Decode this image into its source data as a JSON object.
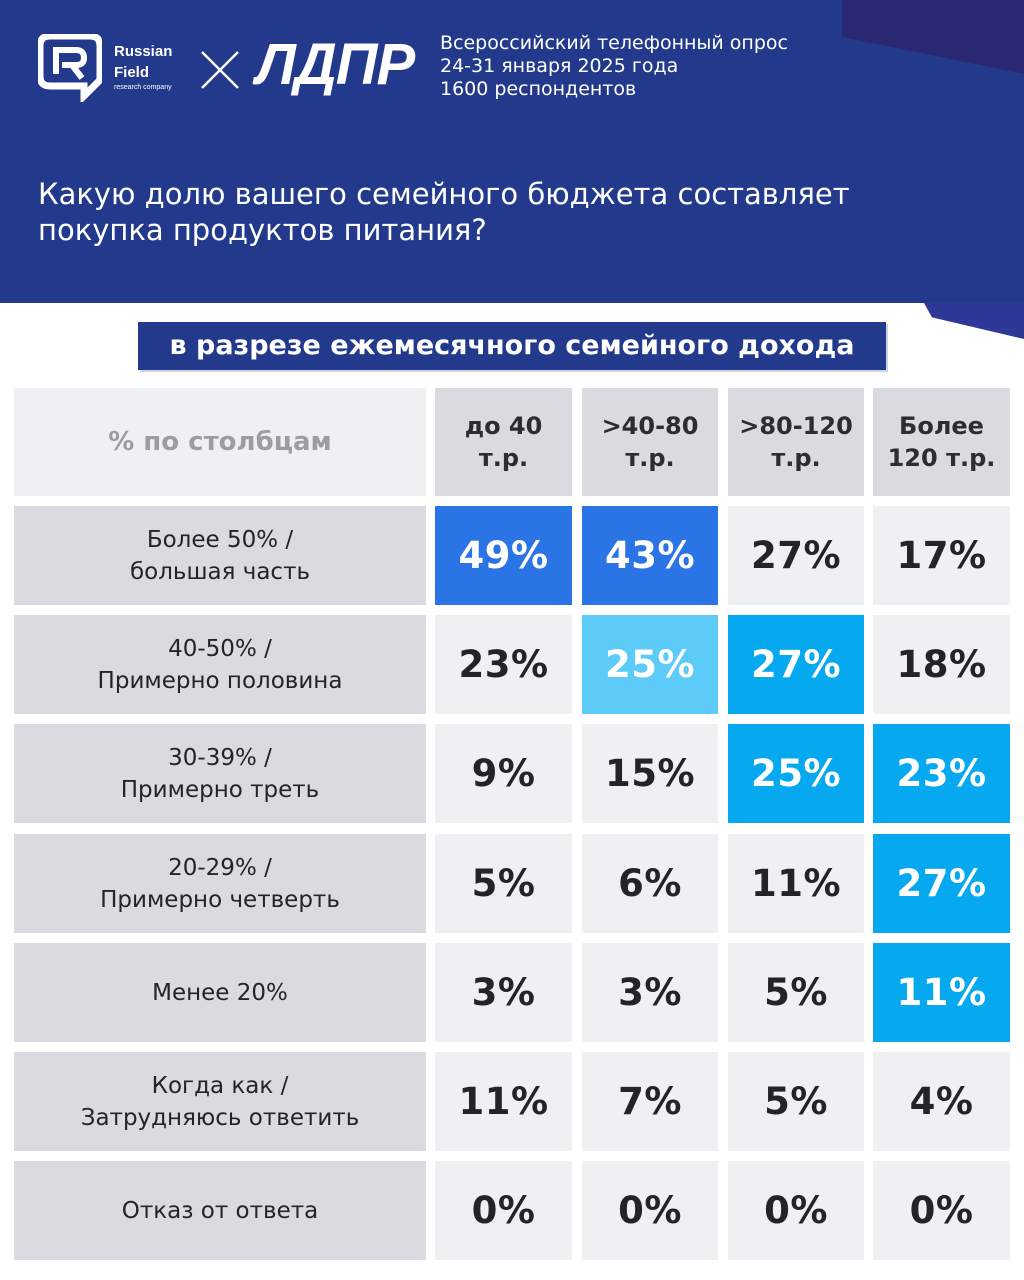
{
  "header": {
    "logo_rf_line1": "Russian",
    "logo_rf_line2": "Field",
    "logo_rf_sub": "research company",
    "logo_ldpr": "ЛДПР",
    "survey_lines": [
      "Всероссийский телефонный опрос",
      "24-31 января 2025 года",
      "1600 респондентов"
    ],
    "question_lines": [
      "Какую долю вашего семейного бюджета составляет",
      "покупка продуктов питания?"
    ],
    "subtitle": "в разрезе ежемесячного семейного дохода"
  },
  "colors": {
    "header_bg": "#233a8c",
    "blue_strong": "#2a74e6",
    "blue_cyan": "#06a8f0",
    "blue_light": "#5ccbf8",
    "cell_plain": "#eff0f2",
    "cell_label": "#d9dbe1"
  },
  "chart_data": {
    "type": "table",
    "corner_label": "% по столбцам",
    "columns": [
      {
        "lines": [
          "до 40",
          "т.р."
        ]
      },
      {
        "lines": [
          ">40-80",
          "т.р."
        ]
      },
      {
        "lines": [
          ">80-120",
          "т.р."
        ]
      },
      {
        "lines": [
          "Более",
          "120 т.р."
        ]
      }
    ],
    "rows": [
      {
        "label_lines": [
          "Более 50% /",
          "большая часть"
        ],
        "values": [
          49,
          43,
          27,
          17
        ],
        "highlight": [
          "strong",
          "strong",
          "none",
          "none"
        ]
      },
      {
        "label_lines": [
          "40-50% /",
          "Примерно половина"
        ],
        "values": [
          23,
          25,
          27,
          18
        ],
        "highlight": [
          "none",
          "light",
          "cyan",
          "none"
        ]
      },
      {
        "label_lines": [
          "30-39% /",
          "Примерно треть"
        ],
        "values": [
          9,
          15,
          25,
          23
        ],
        "highlight": [
          "none",
          "none",
          "cyan",
          "cyan"
        ]
      },
      {
        "label_lines": [
          "20-29% /",
          "Примерно четверть"
        ],
        "values": [
          5,
          6,
          11,
          27
        ],
        "highlight": [
          "none",
          "none",
          "none",
          "cyan"
        ]
      },
      {
        "label_lines": [
          "Менее 20%"
        ],
        "values": [
          3,
          3,
          5,
          11
        ],
        "highlight": [
          "none",
          "none",
          "none",
          "cyan"
        ]
      },
      {
        "label_lines": [
          "Когда как /",
          "Затрудняюсь ответить"
        ],
        "values": [
          11,
          7,
          5,
          4
        ],
        "highlight": [
          "none",
          "none",
          "none",
          "none"
        ]
      },
      {
        "label_lines": [
          "Отказ от ответа"
        ],
        "values": [
          0,
          0,
          0,
          0
        ],
        "highlight": [
          "none",
          "none",
          "none",
          "none"
        ]
      }
    ],
    "value_suffix": "%"
  }
}
